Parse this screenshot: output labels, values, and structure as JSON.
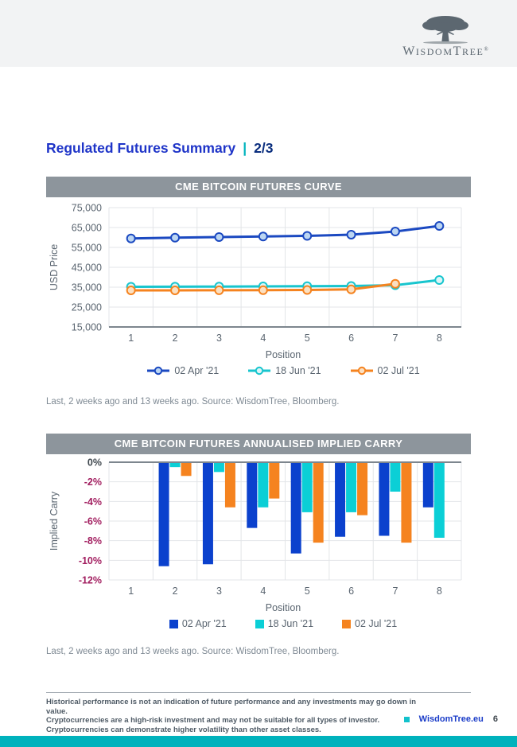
{
  "header": {
    "brand_parts": [
      "W",
      "ISDOM",
      "T",
      "REE",
      "®"
    ]
  },
  "page": {
    "title": "Regulated Futures Summary",
    "separator": "|",
    "indicator": "2/3"
  },
  "notes": {
    "source": "Last, 2 weeks ago and 13 weeks ago. Source: WisdomTree, Bloomberg."
  },
  "footer": {
    "disclaimer": [
      "Historical performance is not an indication of future performance and any investments may go down in value.",
      "Cryptocurrencies are a high-risk investment and may not be suitable for all types of investor.",
      "Cryptocurrencies can demonstrate higher volatility than other asset classes."
    ],
    "website": "WisdomTree.eu",
    "page_number": "6"
  },
  "colors": {
    "accent_teal": "#00b4bd",
    "title_blue": "#1e34c8",
    "panel_header": "#8d959c",
    "grid": "#e3e5e8",
    "axis": "#7d868e",
    "tick_text": "#5a6570",
    "negative_tick": "#a21f60",
    "zero_tick": "#3f474e"
  },
  "chart_data": [
    {
      "type": "line",
      "title": "CME BITCOIN FUTURES CURVE",
      "xlabel": "Position",
      "ylabel": "USD Price",
      "x": [
        1,
        2,
        3,
        4,
        5,
        6,
        7,
        8
      ],
      "ylim": [
        15000,
        75000
      ],
      "ytick_step": 10000,
      "grid": true,
      "legend_position": "bottom",
      "series": [
        {
          "name": "02 Apr '21",
          "color": "#1b49c1",
          "marker_fill": "#bcd6f2",
          "values": [
            59500,
            59900,
            60200,
            60500,
            60800,
            61400,
            63000,
            65800
          ]
        },
        {
          "name": "18 Jun '21",
          "color": "#18c5ce",
          "marker_fill": "#dcf5f7",
          "values": [
            35200,
            35250,
            35300,
            35400,
            35500,
            35600,
            36000,
            38600
          ]
        },
        {
          "name": "02 Jul '21",
          "color": "#f5831f",
          "marker_fill": "#fbe0c2",
          "values": [
            33400,
            33400,
            33450,
            33500,
            33600,
            33900,
            36700,
            null
          ]
        }
      ]
    },
    {
      "type": "bar",
      "title": "CME BITCOIN FUTURES ANNUALISED IMPLIED CARRY",
      "xlabel": "Position",
      "ylabel": "Implied Carry",
      "categories": [
        1,
        2,
        3,
        4,
        5,
        6,
        7,
        8
      ],
      "ylim": [
        -12,
        0
      ],
      "ytick_step": 2,
      "grid": true,
      "legend_position": "bottom",
      "series": [
        {
          "name": "02 Apr '21",
          "color": "#0b41cd",
          "values": [
            0,
            -10.6,
            -10.4,
            -6.7,
            -9.3,
            -7.6,
            -7.5,
            -4.6
          ]
        },
        {
          "name": "18 Jun '21",
          "color": "#0bcfd6",
          "values": [
            0,
            -0.5,
            -1.0,
            -4.6,
            -5.1,
            -5.1,
            -3.0,
            -7.7
          ]
        },
        {
          "name": "02 Jul '21",
          "color": "#f5831f",
          "values": [
            0,
            -1.4,
            -4.6,
            -3.7,
            -8.2,
            -5.4,
            -8.2,
            null
          ]
        }
      ]
    }
  ]
}
